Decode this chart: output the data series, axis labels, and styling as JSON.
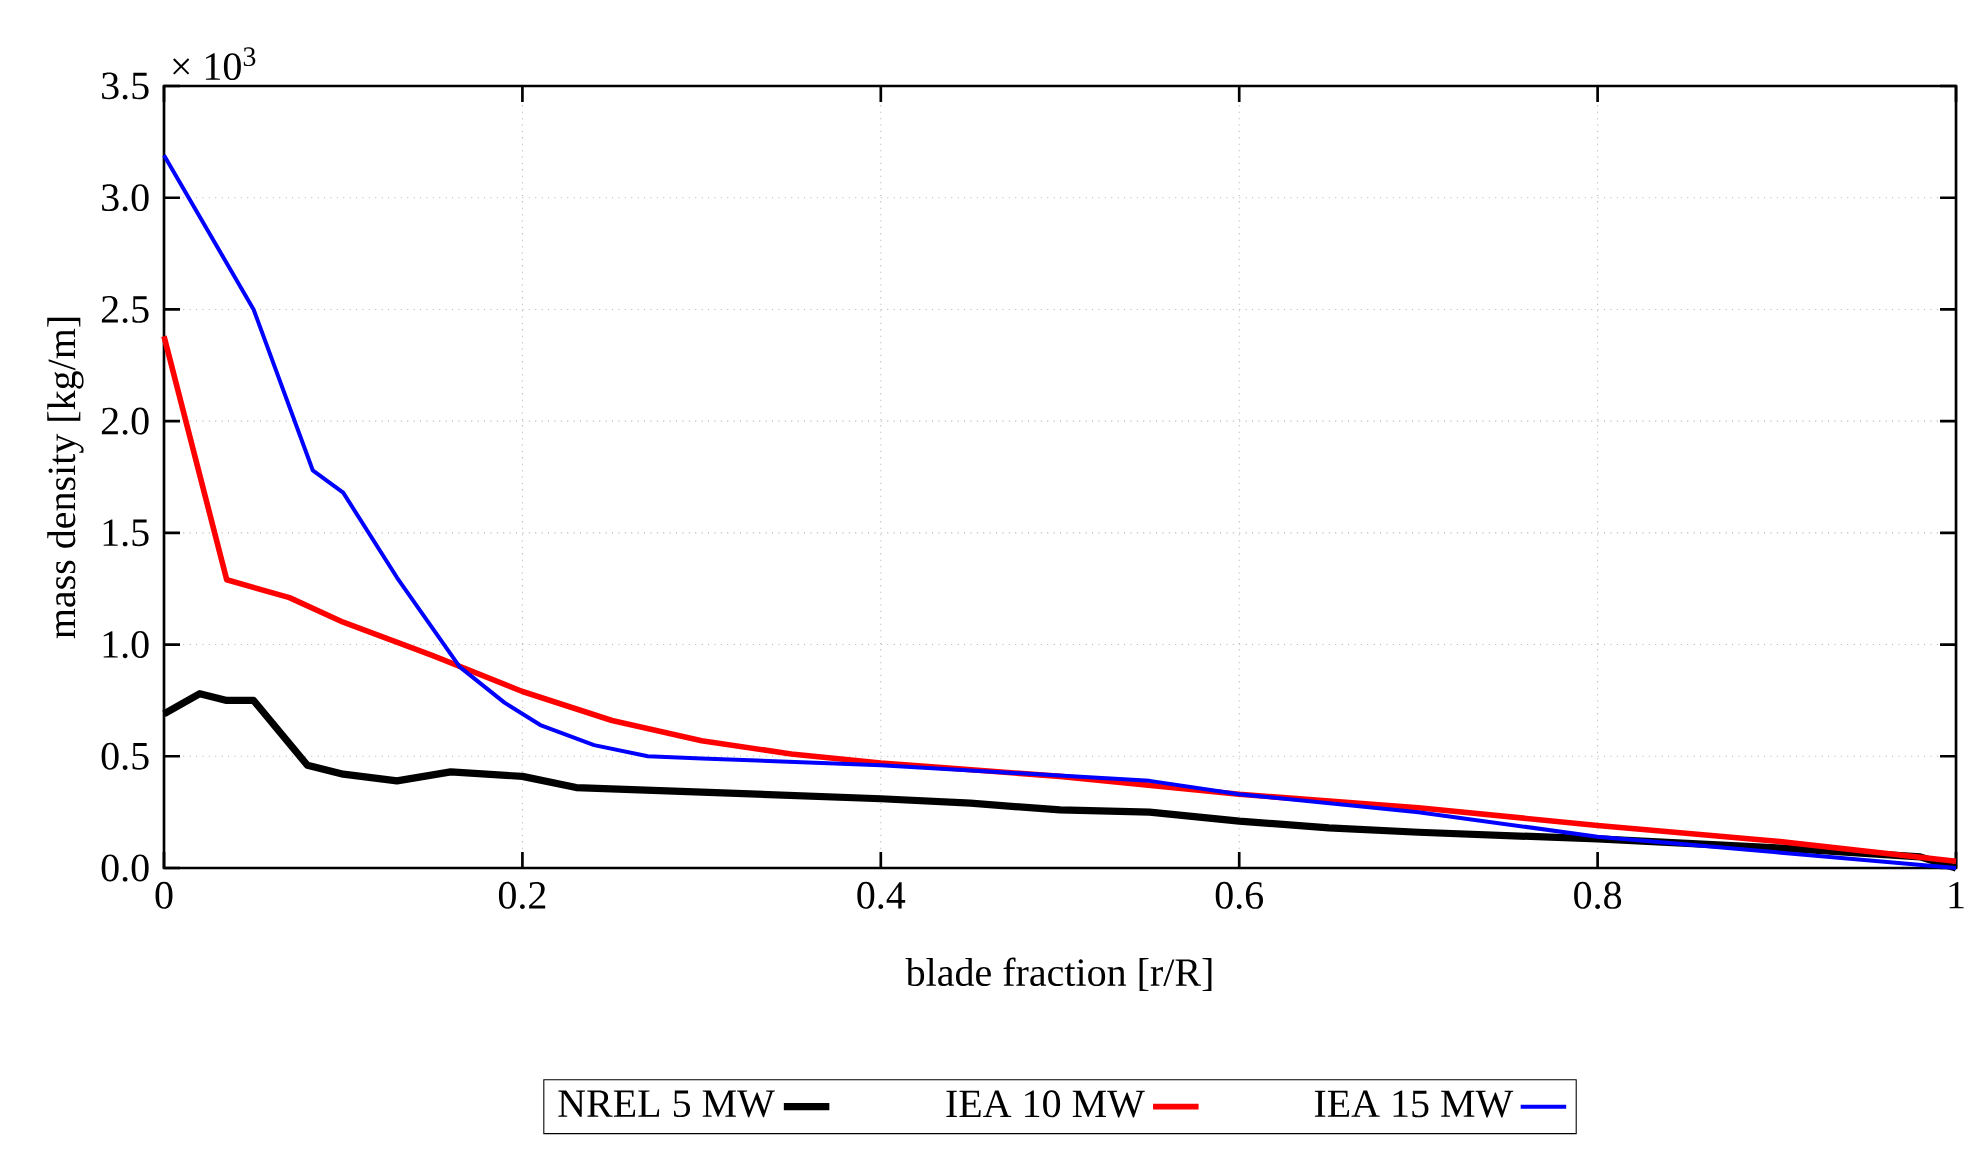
{
  "chart_data": {
    "type": "line",
    "xlabel": "blade fraction [r/R]",
    "ylabel": "mass density [kg/m]",
    "annotations": [
      "× 10$^{3}$"
    ],
    "xlim": [
      0,
      1
    ],
    "ylim": [
      0,
      3.5
    ],
    "xticks": [
      0,
      0.2,
      0.4,
      0.6,
      0.8,
      1
    ],
    "yticks": [
      {
        "value": 0,
        "label": "0.0"
      },
      0.5,
      {
        "value": 1,
        "label": "1.0"
      },
      1.5,
      {
        "value": 2,
        "label": "2.0"
      },
      2.5,
      {
        "value": 3,
        "label": "3.0"
      },
      3.5
    ],
    "grid": true,
    "legend": "bottom",
    "line_style": "solid",
    "series": [
      {
        "name": "NREL 5 MW",
        "color": "#000000",
        "x": [
          0,
          0.02,
          0.035,
          0.05,
          0.08,
          0.1,
          0.13,
          0.16,
          0.2,
          0.23,
          0.3,
          0.4,
          0.45,
          0.5,
          0.55,
          0.6,
          0.65,
          0.7,
          0.8,
          0.9,
          0.98,
          1.0
        ],
        "values": [
          0.69,
          0.78,
          0.75,
          0.75,
          0.46,
          0.42,
          0.39,
          0.43,
          0.41,
          0.36,
          0.34,
          0.31,
          0.29,
          0.26,
          0.25,
          0.21,
          0.18,
          0.16,
          0.13,
          0.09,
          0.05,
          0.0
        ]
      },
      {
        "name": "IEA 10 MW",
        "color": "#ff0000",
        "x": [
          0,
          0.035,
          0.07,
          0.1,
          0.15,
          0.2,
          0.25,
          0.3,
          0.35,
          0.4,
          0.5,
          0.6,
          0.7,
          0.8,
          0.9,
          1.0
        ],
        "values": [
          2.38,
          1.29,
          1.21,
          1.1,
          0.95,
          0.79,
          0.66,
          0.57,
          0.51,
          0.47,
          0.41,
          0.33,
          0.27,
          0.19,
          0.12,
          0.03
        ]
      },
      {
        "name": "IEA 15 MW",
        "color": "#0000ff",
        "x": [
          0,
          0.05,
          0.083,
          0.1,
          0.13,
          0.165,
          0.19,
          0.21,
          0.24,
          0.27,
          0.3,
          0.4,
          0.55,
          0.6,
          0.7,
          0.8,
          0.9,
          1.0
        ],
        "values": [
          3.19,
          2.5,
          1.78,
          1.68,
          1.3,
          0.9,
          0.74,
          0.64,
          0.55,
          0.5,
          0.49,
          0.46,
          0.39,
          0.33,
          0.25,
          0.14,
          0.07,
          0.0
        ]
      }
    ]
  }
}
